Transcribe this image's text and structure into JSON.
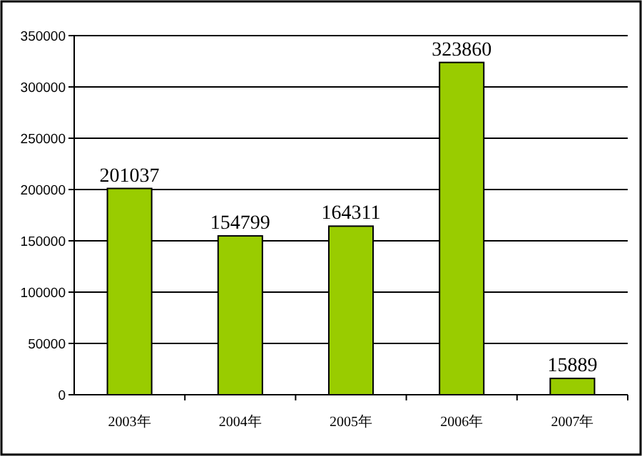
{
  "chart_data": {
    "type": "bar",
    "categories": [
      "2003年",
      "2004年",
      "2005年",
      "2006年",
      "2007年"
    ],
    "values": [
      201037,
      154799,
      164311,
      323860,
      15889
    ],
    "color": "#99cc00",
    "ylim": [
      0,
      350000
    ],
    "yticks": [
      0,
      50000,
      100000,
      150000,
      200000,
      250000,
      300000,
      350000
    ],
    "grid": "y",
    "data_labels": true
  }
}
